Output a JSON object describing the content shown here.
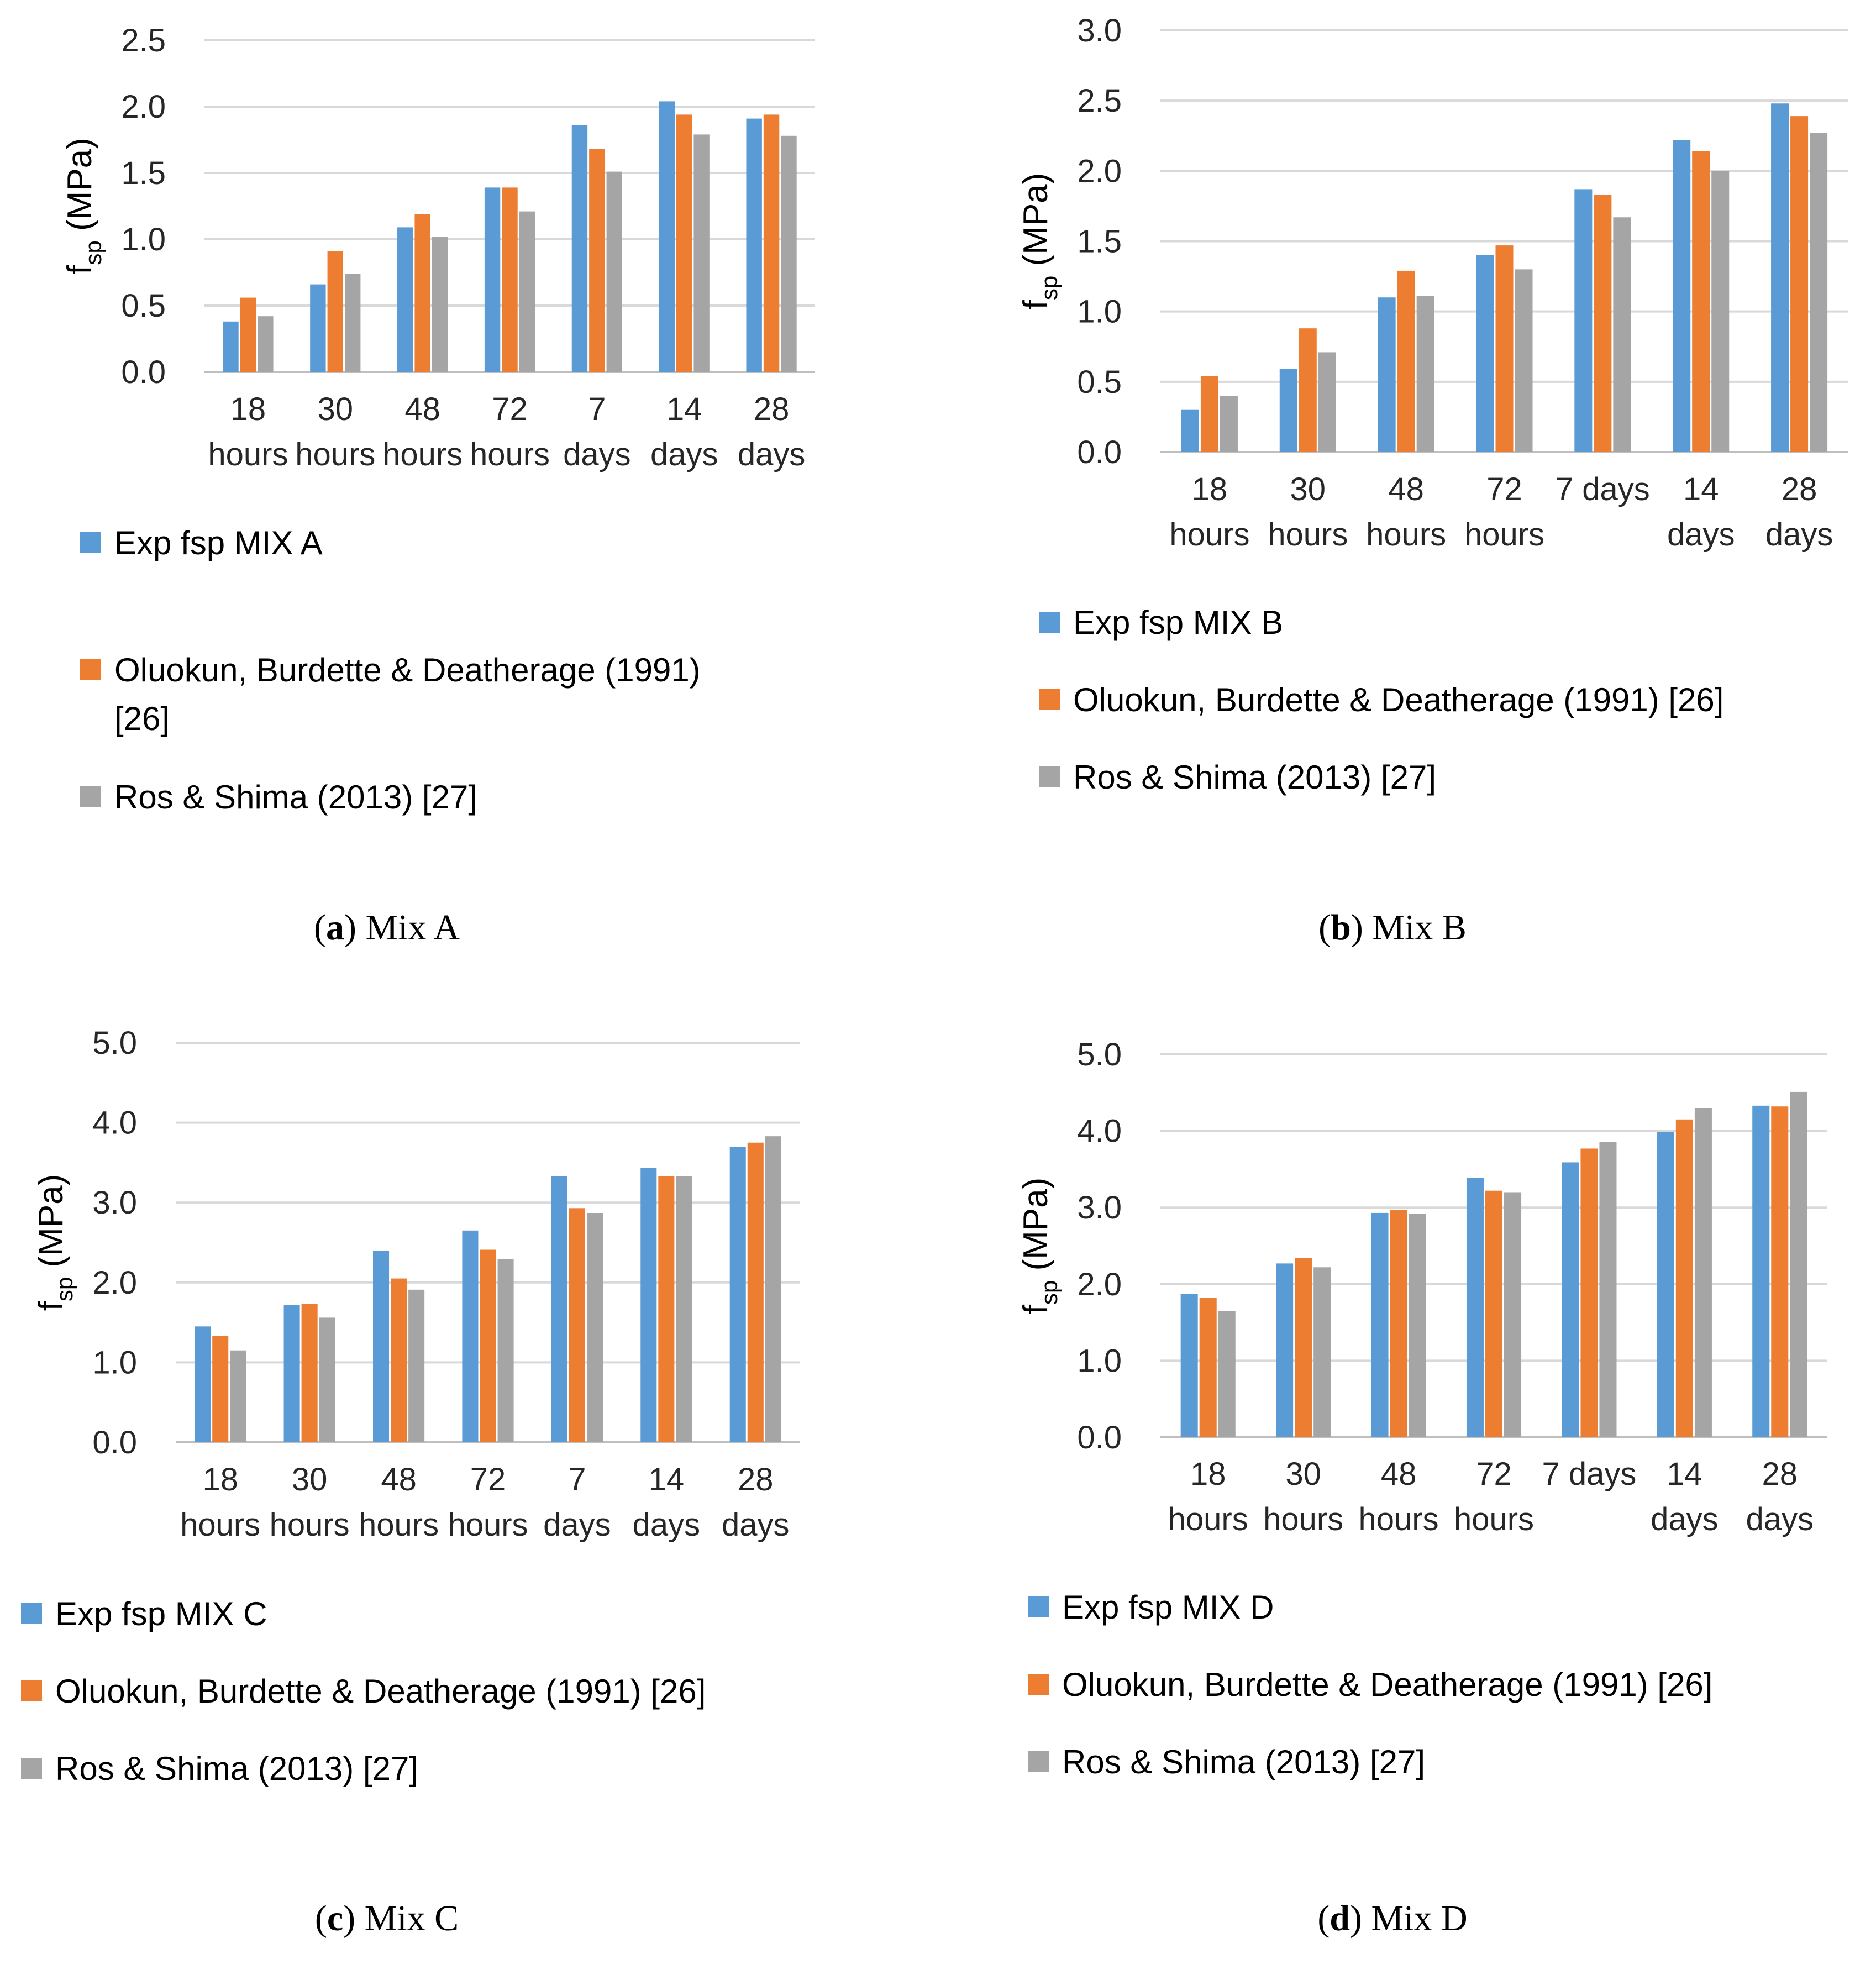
{
  "colors": {
    "series_exp": "#5B9BD5",
    "series_oluokun": "#ED7D31",
    "series_ros": "#A5A5A5",
    "grid": "#D9D9D9",
    "axis": "#BFBFBF",
    "text": "#262626"
  },
  "chart_data": [
    {
      "type": "bar",
      "id": "a",
      "caption_letter": "a",
      "caption_text": "Mix A",
      "ylabel_main": "f",
      "ylabel_sub": "sp",
      "ylabel_unit": " (MPa)",
      "ylim": [
        0,
        2.5
      ],
      "yticks": [
        "0.0",
        "0.5",
        "1.0",
        "1.5",
        "2.0",
        "2.5"
      ],
      "categories": [
        [
          "18",
          "hours"
        ],
        [
          "30",
          "hours"
        ],
        [
          "48",
          "hours"
        ],
        [
          "72",
          "hours"
        ],
        [
          "7",
          "days"
        ],
        [
          "14",
          "days"
        ],
        [
          "28",
          "days"
        ]
      ],
      "series": [
        {
          "name": "Exp fsp MIX A",
          "values": [
            0.38,
            0.66,
            1.09,
            1.39,
            1.86,
            2.04,
            1.91
          ]
        },
        {
          "name": "Oluokun, Burdette & Deatherage (1991) [26]",
          "values": [
            0.56,
            0.91,
            1.19,
            1.39,
            1.68,
            1.94,
            1.94
          ]
        },
        {
          "name": "Ros & Shima (2013) [27]",
          "values": [
            0.42,
            0.74,
            1.02,
            1.21,
            1.51,
            1.79,
            1.78
          ]
        }
      ],
      "legend_lines": [
        [
          "Exp fsp MIX A"
        ],
        [
          "Oluokun, Burdette & Deatherage (1991)",
          "[26]"
        ],
        [
          "Ros & Shima (2013) [27]"
        ]
      ]
    },
    {
      "type": "bar",
      "id": "b",
      "caption_letter": "b",
      "caption_text": "Mix B",
      "ylabel_main": "f",
      "ylabel_sub": "sp",
      "ylabel_unit": " (MPa)",
      "ylim": [
        0,
        3.0
      ],
      "yticks": [
        "0.0",
        "0.5",
        "1.0",
        "1.5",
        "2.0",
        "2.5",
        "3.0"
      ],
      "categories": [
        [
          "18",
          "hours"
        ],
        [
          "30",
          "hours"
        ],
        [
          "48",
          "hours"
        ],
        [
          "72",
          "hours"
        ],
        [
          "7 days"
        ],
        [
          "14",
          "days"
        ],
        [
          "28",
          "days"
        ]
      ],
      "series": [
        {
          "name": "Exp fsp MIX B",
          "values": [
            0.3,
            0.59,
            1.1,
            1.4,
            1.87,
            2.22,
            2.48
          ]
        },
        {
          "name": "Oluokun, Burdette & Deatherage (1991) [26]",
          "values": [
            0.54,
            0.88,
            1.29,
            1.47,
            1.83,
            2.14,
            2.39
          ]
        },
        {
          "name": "Ros & Shima (2013) [27]",
          "values": [
            0.4,
            0.71,
            1.11,
            1.3,
            1.67,
            2.0,
            2.27
          ]
        }
      ],
      "legend_lines": [
        [
          "Exp fsp MIX B"
        ],
        [
          "Oluokun, Burdette & Deatherage (1991) [26]"
        ],
        [
          "Ros & Shima (2013) [27]"
        ]
      ]
    },
    {
      "type": "bar",
      "id": "c",
      "caption_letter": "c",
      "caption_text": "Mix C",
      "ylabel_main": "f",
      "ylabel_sub": "sp",
      "ylabel_unit": " (MPa)",
      "ylim": [
        0,
        5.0
      ],
      "yticks": [
        "0.0",
        "1.0",
        "2.0",
        "3.0",
        "4.0",
        "5.0"
      ],
      "categories": [
        [
          "18",
          "hours"
        ],
        [
          "30",
          "hours"
        ],
        [
          "48",
          "hours"
        ],
        [
          "72",
          "hours"
        ],
        [
          "7",
          "days"
        ],
        [
          "14",
          "days"
        ],
        [
          "28",
          "days"
        ]
      ],
      "series": [
        {
          "name": "Exp fsp MIX C",
          "values": [
            1.45,
            1.72,
            2.4,
            2.65,
            3.33,
            3.43,
            3.7
          ]
        },
        {
          "name": "Oluokun, Burdette & Deatherage (1991) [26]",
          "values": [
            1.33,
            1.73,
            2.05,
            2.41,
            2.93,
            3.33,
            3.75
          ]
        },
        {
          "name": "Ros & Shima (2013) [27]",
          "values": [
            1.15,
            1.56,
            1.91,
            2.29,
            2.87,
            3.33,
            3.83
          ]
        }
      ],
      "legend_lines": [
        [
          "Exp fsp MIX C"
        ],
        [
          "Oluokun, Burdette & Deatherage (1991) [26]"
        ],
        [
          "Ros & Shima (2013) [27]"
        ]
      ]
    },
    {
      "type": "bar",
      "id": "d",
      "caption_letter": "d",
      "caption_text": "Mix D",
      "ylabel_main": "f",
      "ylabel_sub": "sp",
      "ylabel_unit": " (MPa)",
      "ylim": [
        0,
        5.0
      ],
      "yticks": [
        "0.0",
        "1.0",
        "2.0",
        "3.0",
        "4.0",
        "5.0"
      ],
      "categories": [
        [
          "18",
          "hours"
        ],
        [
          "30",
          "hours"
        ],
        [
          "48",
          "hours"
        ],
        [
          "72",
          "hours"
        ],
        [
          "7 days"
        ],
        [
          "14",
          "days"
        ],
        [
          "28",
          "days"
        ]
      ],
      "series": [
        {
          "name": "Exp fsp MIX D",
          "values": [
            1.87,
            2.27,
            2.93,
            3.39,
            3.59,
            3.99,
            4.33
          ]
        },
        {
          "name": "Oluokun, Burdette & Deatherage (1991) [26]",
          "values": [
            1.82,
            2.34,
            2.97,
            3.22,
            3.77,
            4.15,
            4.32
          ]
        },
        {
          "name": "Ros & Shima (2013) [27]",
          "values": [
            1.65,
            2.22,
            2.92,
            3.2,
            3.86,
            4.3,
            4.51
          ]
        }
      ],
      "legend_lines": [
        [
          "Exp fsp MIX D"
        ],
        [
          "Oluokun, Burdette & Deatherage (1991) [26]"
        ],
        [
          "Ros & Shima (2013) [27]"
        ]
      ]
    }
  ]
}
